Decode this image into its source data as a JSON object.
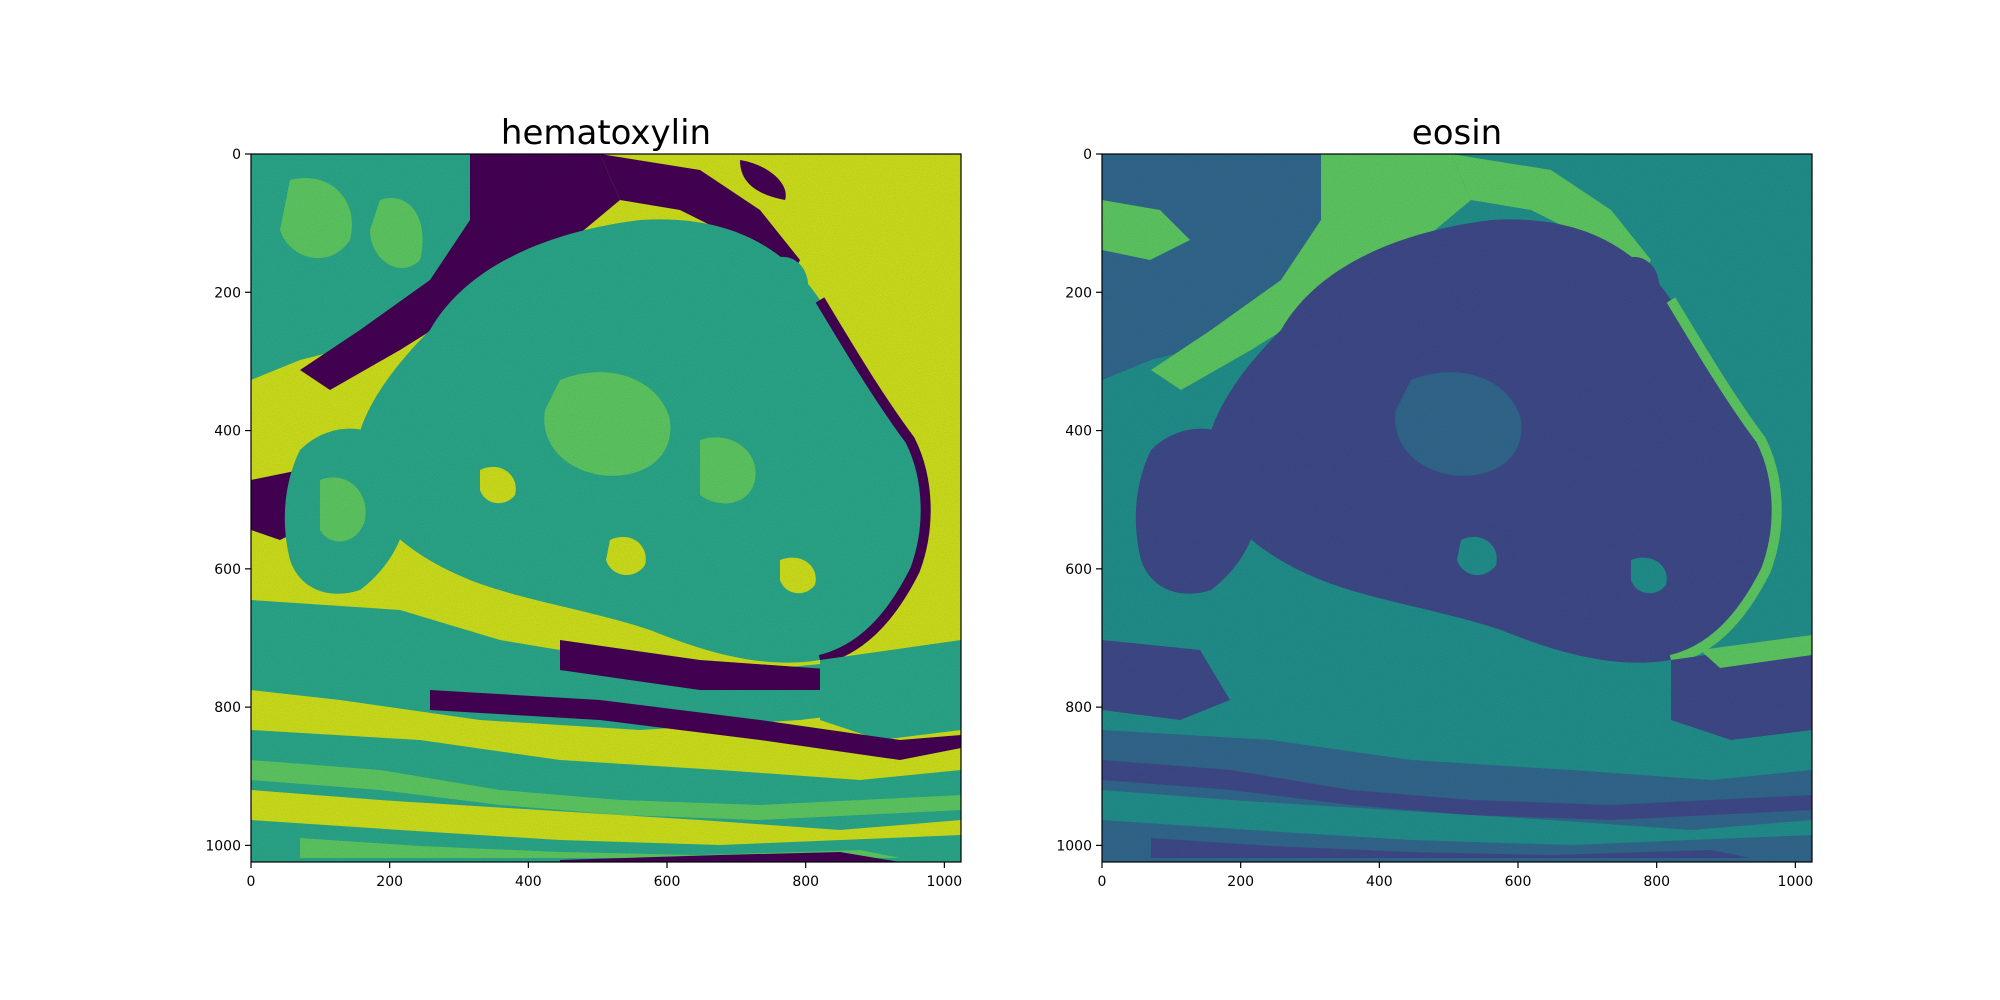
{
  "figure": {
    "panels": [
      {
        "id": "hematoxylin",
        "title": "hematoxylin",
        "colormap": "viridis",
        "palette": {
          "background": "#cfe11c",
          "tissue_mid": "#2aa88a",
          "tissue_light": "#5ec962",
          "tissue_dark": "#3b528b",
          "stroma_dark": "#440154",
          "highlight": "#bddf26"
        }
      },
      {
        "id": "eosin",
        "title": "eosin",
        "colormap": "viridis",
        "palette": {
          "background": "#21908c",
          "tissue_mid": "#31688e",
          "tissue_dark": "#3e4a89",
          "stroma_bright": "#5ec962",
          "highlight": "#29af7f"
        }
      }
    ]
  },
  "chart_data": [
    {
      "type": "heatmap",
      "title": "hematoxylin",
      "xlabel": "",
      "ylabel": "",
      "xlim": [
        0,
        1024
      ],
      "ylim": [
        1024,
        0
      ],
      "x_ticks": [
        0,
        200,
        400,
        600,
        800,
        1000
      ],
      "y_ticks": [
        0,
        200,
        400,
        600,
        800,
        1000
      ],
      "colormap": "viridis",
      "grid": false
    },
    {
      "type": "heatmap",
      "title": "eosin",
      "xlabel": "",
      "ylabel": "",
      "xlim": [
        0,
        1024
      ],
      "ylim": [
        1024,
        0
      ],
      "x_ticks": [
        0,
        200,
        400,
        600,
        800,
        1000
      ],
      "y_ticks": [
        0,
        200,
        400,
        600,
        800,
        1000
      ],
      "colormap": "viridis",
      "grid": false
    }
  ]
}
